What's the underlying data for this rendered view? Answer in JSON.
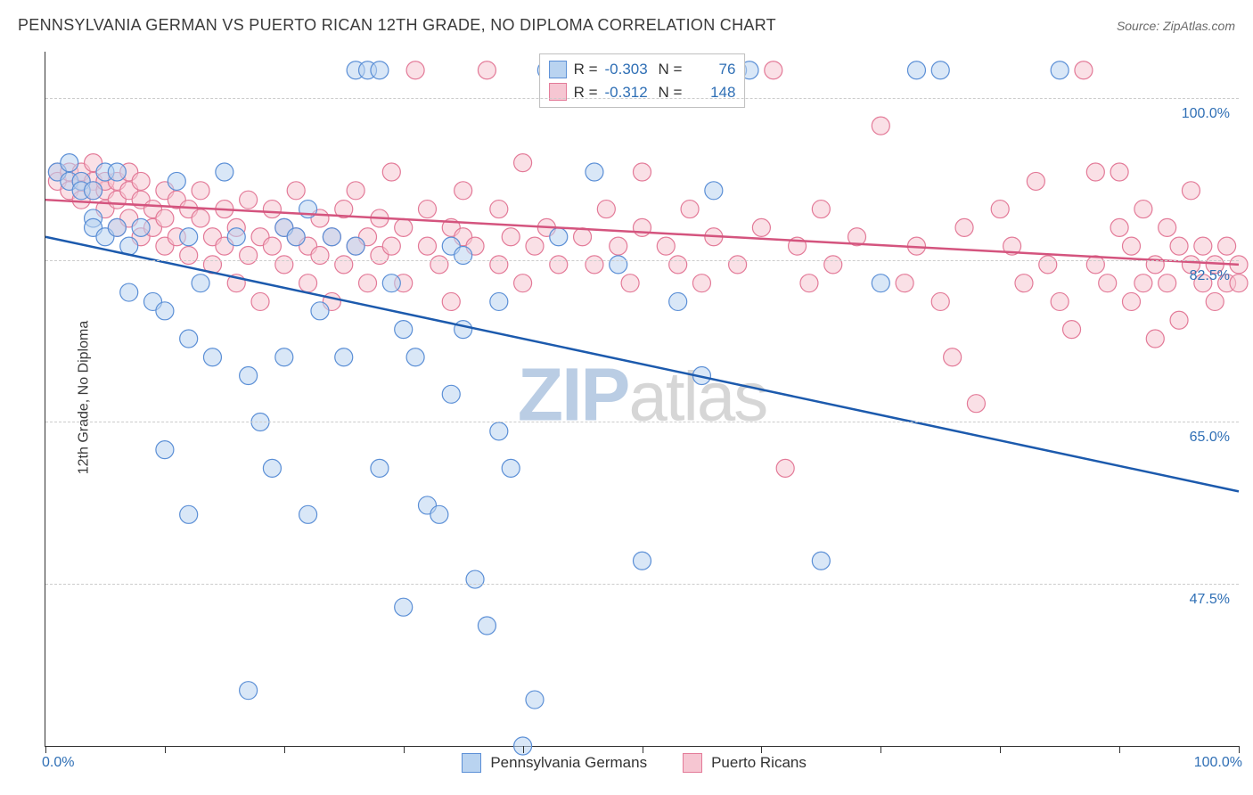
{
  "title": "PENNSYLVANIA GERMAN VS PUERTO RICAN 12TH GRADE, NO DIPLOMA CORRELATION CHART",
  "source": "Source: ZipAtlas.com",
  "y_axis_label": "12th Grade, No Diploma",
  "watermark_bold": "ZIP",
  "watermark_rest": "atlas",
  "chart": {
    "type": "scatter",
    "xlim": [
      0,
      100
    ],
    "ylim": [
      30,
      105
    ],
    "x_ticks": [
      0,
      10,
      20,
      30,
      40,
      50,
      60,
      70,
      80,
      90,
      100
    ],
    "y_grid": [
      47.5,
      65.0,
      82.5,
      100.0
    ],
    "y_tick_labels": [
      "47.5%",
      "65.0%",
      "82.5%",
      "100.0%"
    ],
    "x_min_label": "0.0%",
    "x_max_label": "100.0%",
    "background_color": "#ffffff",
    "grid_color": "#cccccc",
    "marker_radius": 10,
    "marker_opacity": 0.55,
    "line_width": 2.5,
    "series": [
      {
        "name": "Pennsylvania Germans",
        "color_fill": "#b9d3f0",
        "color_stroke": "#5b8fd6",
        "line_color": "#1c5aad",
        "R": "-0.303",
        "N": "76",
        "trend": {
          "x1": 0,
          "y1": 85.0,
          "x2": 100,
          "y2": 57.5
        },
        "points": [
          [
            1,
            92
          ],
          [
            2,
            91
          ],
          [
            2,
            93
          ],
          [
            3,
            91
          ],
          [
            3,
            90
          ],
          [
            4,
            90
          ],
          [
            4,
            87
          ],
          [
            4,
            86
          ],
          [
            5,
            92
          ],
          [
            5,
            85
          ],
          [
            6,
            92
          ],
          [
            6,
            86
          ],
          [
            7,
            84
          ],
          [
            7,
            79
          ],
          [
            8,
            86
          ],
          [
            9,
            78
          ],
          [
            10,
            77
          ],
          [
            10,
            62
          ],
          [
            11,
            91
          ],
          [
            12,
            85
          ],
          [
            12,
            74
          ],
          [
            12,
            55
          ],
          [
            13,
            80
          ],
          [
            14,
            72
          ],
          [
            15,
            92
          ],
          [
            16,
            85
          ],
          [
            17,
            70
          ],
          [
            17,
            36
          ],
          [
            18,
            65
          ],
          [
            19,
            60
          ],
          [
            20,
            86
          ],
          [
            20,
            72
          ],
          [
            21,
            85
          ],
          [
            22,
            55
          ],
          [
            22,
            88
          ],
          [
            23,
            77
          ],
          [
            24,
            85
          ],
          [
            25,
            72
          ],
          [
            26,
            84
          ],
          [
            26,
            103
          ],
          [
            27,
            103
          ],
          [
            28,
            103
          ],
          [
            28,
            60
          ],
          [
            29,
            80
          ],
          [
            30,
            75
          ],
          [
            30,
            45
          ],
          [
            31,
            72
          ],
          [
            32,
            56
          ],
          [
            33,
            55
          ],
          [
            34,
            84
          ],
          [
            34,
            68
          ],
          [
            35,
            83
          ],
          [
            35,
            75
          ],
          [
            36,
            48
          ],
          [
            37,
            43
          ],
          [
            38,
            78
          ],
          [
            38,
            64
          ],
          [
            39,
            60
          ],
          [
            40,
            30
          ],
          [
            41,
            35
          ],
          [
            42,
            103
          ],
          [
            43,
            85
          ],
          [
            46,
            92
          ],
          [
            48,
            82
          ],
          [
            50,
            50
          ],
          [
            52,
            103
          ],
          [
            53,
            78
          ],
          [
            55,
            70
          ],
          [
            56,
            90
          ],
          [
            58,
            103
          ],
          [
            59,
            103
          ],
          [
            65,
            50
          ],
          [
            70,
            80
          ],
          [
            73,
            103
          ],
          [
            75,
            103
          ],
          [
            85,
            103
          ]
        ]
      },
      {
        "name": "Puerto Ricans",
        "color_fill": "#f6c6d2",
        "color_stroke": "#e37a98",
        "line_color": "#d4547e",
        "R": "-0.312",
        "N": "148",
        "trend": {
          "x1": 0,
          "y1": 89.0,
          "x2": 100,
          "y2": 82.0
        },
        "points": [
          [
            1,
            92
          ],
          [
            1,
            91
          ],
          [
            2,
            92
          ],
          [
            2,
            90
          ],
          [
            3,
            91
          ],
          [
            3,
            92
          ],
          [
            3,
            89
          ],
          [
            4,
            91
          ],
          [
            4,
            90
          ],
          [
            4,
            93
          ],
          [
            5,
            90
          ],
          [
            5,
            91
          ],
          [
            5,
            88
          ],
          [
            6,
            91
          ],
          [
            6,
            89
          ],
          [
            6,
            86
          ],
          [
            7,
            90
          ],
          [
            7,
            87
          ],
          [
            7,
            92
          ],
          [
            8,
            89
          ],
          [
            8,
            85
          ],
          [
            8,
            91
          ],
          [
            9,
            88
          ],
          [
            9,
            86
          ],
          [
            10,
            90
          ],
          [
            10,
            87
          ],
          [
            10,
            84
          ],
          [
            11,
            89
          ],
          [
            11,
            85
          ],
          [
            12,
            88
          ],
          [
            12,
            83
          ],
          [
            13,
            87
          ],
          [
            13,
            90
          ],
          [
            14,
            85
          ],
          [
            14,
            82
          ],
          [
            15,
            88
          ],
          [
            15,
            84
          ],
          [
            16,
            86
          ],
          [
            16,
            80
          ],
          [
            17,
            89
          ],
          [
            17,
            83
          ],
          [
            18,
            85
          ],
          [
            18,
            78
          ],
          [
            19,
            84
          ],
          [
            19,
            88
          ],
          [
            20,
            86
          ],
          [
            20,
            82
          ],
          [
            21,
            85
          ],
          [
            21,
            90
          ],
          [
            22,
            84
          ],
          [
            22,
            80
          ],
          [
            23,
            87
          ],
          [
            23,
            83
          ],
          [
            24,
            85
          ],
          [
            24,
            78
          ],
          [
            25,
            88
          ],
          [
            25,
            82
          ],
          [
            26,
            84
          ],
          [
            26,
            90
          ],
          [
            27,
            85
          ],
          [
            27,
            80
          ],
          [
            28,
            87
          ],
          [
            28,
            83
          ],
          [
            29,
            84
          ],
          [
            29,
            92
          ],
          [
            30,
            86
          ],
          [
            30,
            80
          ],
          [
            31,
            103
          ],
          [
            32,
            84
          ],
          [
            32,
            88
          ],
          [
            33,
            82
          ],
          [
            34,
            86
          ],
          [
            34,
            78
          ],
          [
            35,
            85
          ],
          [
            35,
            90
          ],
          [
            36,
            84
          ],
          [
            37,
            103
          ],
          [
            38,
            82
          ],
          [
            38,
            88
          ],
          [
            39,
            85
          ],
          [
            40,
            80
          ],
          [
            40,
            93
          ],
          [
            41,
            84
          ],
          [
            42,
            86
          ],
          [
            43,
            82
          ],
          [
            44,
            103
          ],
          [
            45,
            85
          ],
          [
            46,
            82
          ],
          [
            47,
            88
          ],
          [
            48,
            84
          ],
          [
            49,
            80
          ],
          [
            50,
            86
          ],
          [
            50,
            92
          ],
          [
            52,
            84
          ],
          [
            53,
            82
          ],
          [
            54,
            88
          ],
          [
            55,
            80
          ],
          [
            56,
            85
          ],
          [
            57,
            103
          ],
          [
            58,
            82
          ],
          [
            60,
            86
          ],
          [
            61,
            103
          ],
          [
            62,
            60
          ],
          [
            63,
            84
          ],
          [
            64,
            80
          ],
          [
            65,
            88
          ],
          [
            66,
            82
          ],
          [
            68,
            85
          ],
          [
            70,
            97
          ],
          [
            72,
            80
          ],
          [
            73,
            84
          ],
          [
            75,
            78
          ],
          [
            76,
            72
          ],
          [
            77,
            86
          ],
          [
            78,
            67
          ],
          [
            80,
            88
          ],
          [
            81,
            84
          ],
          [
            82,
            80
          ],
          [
            83,
            91
          ],
          [
            84,
            82
          ],
          [
            85,
            78
          ],
          [
            86,
            75
          ],
          [
            87,
            103
          ],
          [
            88,
            92
          ],
          [
            88,
            82
          ],
          [
            89,
            80
          ],
          [
            90,
            92
          ],
          [
            90,
            86
          ],
          [
            91,
            84
          ],
          [
            91,
            78
          ],
          [
            92,
            80
          ],
          [
            92,
            88
          ],
          [
            93,
            74
          ],
          [
            93,
            82
          ],
          [
            94,
            86
          ],
          [
            94,
            80
          ],
          [
            95,
            84
          ],
          [
            95,
            76
          ],
          [
            96,
            82
          ],
          [
            96,
            90
          ],
          [
            97,
            80
          ],
          [
            97,
            84
          ],
          [
            98,
            78
          ],
          [
            98,
            82
          ],
          [
            99,
            80
          ],
          [
            99,
            84
          ],
          [
            100,
            80
          ],
          [
            100,
            82
          ]
        ]
      }
    ]
  },
  "legend": {
    "series1": "Pennsylvania Germans",
    "series2": "Puerto Ricans"
  },
  "stats_labels": {
    "R": "R =",
    "N": "N ="
  }
}
